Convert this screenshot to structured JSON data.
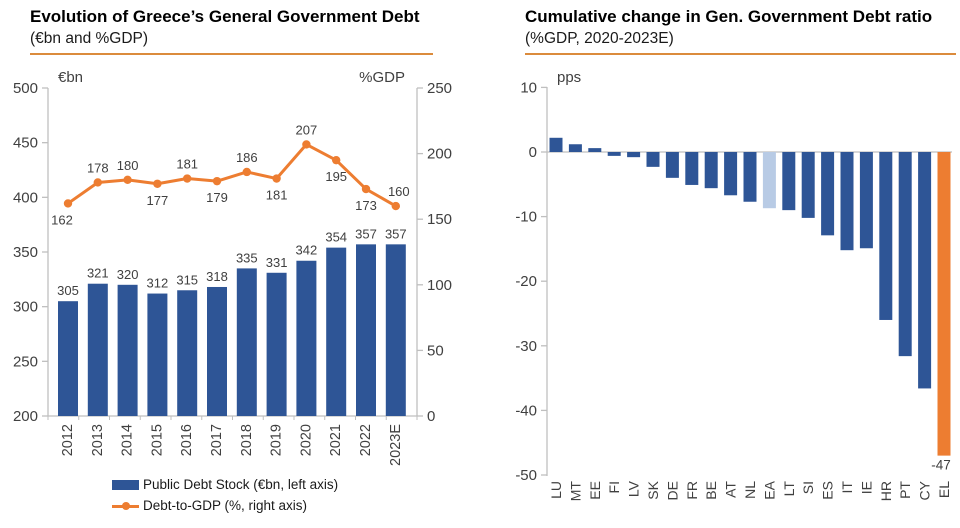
{
  "colors": {
    "bar_blue": "#2e5596",
    "line_orange": "#ed7d31",
    "highlight_light_blue": "#b8cbe5",
    "highlight_orange": "#ed7d31",
    "axis_gray": "#bfbfbf",
    "tick_text_gray": "#404040",
    "data_label_gray": "#404040",
    "underline_orange": "#db8b3c"
  },
  "chart_data": [
    {
      "type": "combo-bar-line",
      "title": "Evolution of Greece’s General Government Debt",
      "subtitle": "(€bn and %GDP)",
      "left_axis_unit": "€bn",
      "right_axis_unit": "%GDP",
      "categories": [
        "2012",
        "2013",
        "2014",
        "2015",
        "2016",
        "2017",
        "2018",
        "2019",
        "2020",
        "2021",
        "2022",
        "2023E"
      ],
      "series": [
        {
          "name": "Public Debt Stock (€bn, left axis)",
          "type": "bar",
          "axis": "left",
          "values": [
            305,
            321,
            320,
            312,
            315,
            318,
            335,
            331,
            342,
            354,
            357,
            357
          ]
        },
        {
          "name": "Debt-to-GDP (%, right axis)",
          "type": "line",
          "axis": "right",
          "values": [
            162,
            178,
            180,
            177,
            181,
            179,
            186,
            181,
            207,
            195,
            173,
            160
          ],
          "label_positions": [
            "below",
            "above",
            "above",
            "below",
            "above",
            "below",
            "above",
            "below",
            "above",
            "below",
            "below",
            "above"
          ]
        }
      ],
      "left_ylim": [
        200,
        500
      ],
      "left_ticks": [
        500,
        450,
        400,
        350,
        300,
        250,
        200
      ],
      "right_ylim": [
        0,
        250
      ],
      "right_ticks": [
        250,
        200,
        150,
        100,
        50,
        0
      ],
      "grid": false,
      "legend_position": "bottom"
    },
    {
      "type": "bar",
      "title": "Cumulative change in Gen. Government Debt ratio",
      "subtitle": "(%GDP, 2020-2023E)",
      "axis_unit": "pps",
      "categories": [
        "LU",
        "MT",
        "EE",
        "FI",
        "LV",
        "SK",
        "DE",
        "FR",
        "BE",
        "AT",
        "NL",
        "EA",
        "LT",
        "SI",
        "ES",
        "IT",
        "IE",
        "HR",
        "PT",
        "CY",
        "EL"
      ],
      "values": [
        2.2,
        1.2,
        0.6,
        -0.6,
        -0.8,
        -2.3,
        -4.0,
        -5.1,
        -5.6,
        -6.7,
        -7.7,
        -8.7,
        -9.0,
        -10.2,
        -12.9,
        -15.2,
        -14.9,
        -26.0,
        -31.6,
        -36.6,
        -47.0
      ],
      "ylim": [
        -50,
        10
      ],
      "yticks": [
        10,
        0,
        -10,
        -20,
        -30,
        -40,
        -50
      ],
      "grid": false,
      "bar_color_overrides": {
        "EA": "#b8cbe5",
        "EL": "#ed7d31"
      },
      "data_labels": {
        "EL": "-47"
      }
    }
  ]
}
